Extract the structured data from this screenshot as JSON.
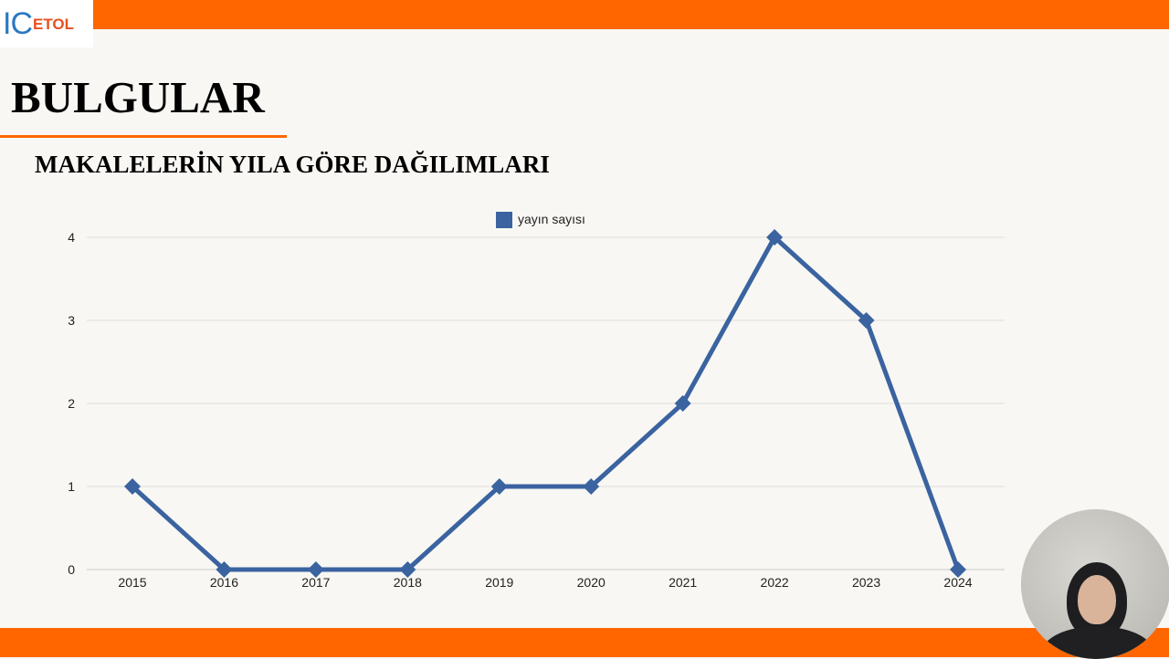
{
  "header": {
    "logo_text_main": "IC",
    "logo_text_rest": "ETOL",
    "title": "BULGULAR"
  },
  "section": {
    "subtitle": "MAKALELERİN YILA GÖRE DAĞILIMLARI"
  },
  "colors": {
    "accent": "#ff6600",
    "series": "#3a63a0",
    "gridline": "#dedede",
    "background": "#f8f7f3"
  },
  "chart_data": {
    "type": "line",
    "title": "",
    "xlabel": "",
    "ylabel": "",
    "categories": [
      "2015",
      "2016",
      "2017",
      "2018",
      "2019",
      "2020",
      "2021",
      "2022",
      "2023",
      "2024"
    ],
    "series": [
      {
        "name": "yayın sayısı",
        "values": [
          1,
          0,
          0,
          0,
          1,
          1,
          2,
          4,
          3,
          0
        ],
        "marker": "diamond"
      }
    ],
    "yticks": [
      0,
      1,
      2,
      3,
      4
    ],
    "ylim": [
      0,
      4
    ],
    "grid": true,
    "legend_position": "top"
  }
}
